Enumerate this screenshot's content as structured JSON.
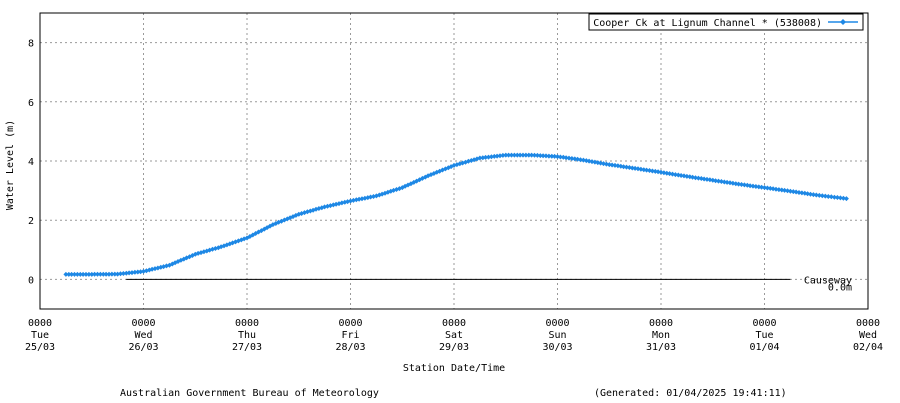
{
  "chart_data": {
    "type": "line",
    "title": "",
    "xlabel": "Station Date/Time",
    "ylabel": "Water Level (m)",
    "ylim": [
      -1,
      9
    ],
    "yticks": [
      0,
      2,
      4,
      6,
      8
    ],
    "grid": true,
    "legend_position": "top-right",
    "x_ticks": [
      {
        "time": "0000",
        "day": "Tue",
        "date": "25/03"
      },
      {
        "time": "0000",
        "day": "Wed",
        "date": "26/03"
      },
      {
        "time": "0000",
        "day": "Thu",
        "date": "27/03"
      },
      {
        "time": "0000",
        "day": "Fri",
        "date": "28/03"
      },
      {
        "time": "0000",
        "day": "Sat",
        "date": "29/03"
      },
      {
        "time": "0000",
        "day": "Sun",
        "date": "30/03"
      },
      {
        "time": "0000",
        "day": "Mon",
        "date": "31/03"
      },
      {
        "time": "0000",
        "day": "Tue",
        "date": "01/04"
      },
      {
        "time": "0000",
        "day": "Wed",
        "date": "02/04"
      }
    ],
    "series": [
      {
        "name": "Cooper Ck at Lignum Channel * (538008)",
        "color": "#1e88e5",
        "marker": "diamond",
        "points": [
          [
            "2025-03-25 06:00",
            0.17
          ],
          [
            "2025-03-25 12:00",
            0.17
          ],
          [
            "2025-03-25 18:00",
            0.18
          ],
          [
            "2025-03-26 00:00",
            0.27
          ],
          [
            "2025-03-26 06:00",
            0.48
          ],
          [
            "2025-03-26 12:00",
            0.85
          ],
          [
            "2025-03-26 18:00",
            1.1
          ],
          [
            "2025-03-27 00:00",
            1.4
          ],
          [
            "2025-03-27 06:00",
            1.85
          ],
          [
            "2025-03-27 12:00",
            2.2
          ],
          [
            "2025-03-27 18:00",
            2.45
          ],
          [
            "2025-03-28 00:00",
            2.65
          ],
          [
            "2025-03-28 06:00",
            2.82
          ],
          [
            "2025-03-28 12:00",
            3.1
          ],
          [
            "2025-03-28 18:00",
            3.5
          ],
          [
            "2025-03-29 00:00",
            3.85
          ],
          [
            "2025-03-29 06:00",
            4.1
          ],
          [
            "2025-03-29 12:00",
            4.2
          ],
          [
            "2025-03-29 18:00",
            4.2
          ],
          [
            "2025-03-30 00:00",
            4.15
          ],
          [
            "2025-03-30 06:00",
            4.03
          ],
          [
            "2025-03-30 12:00",
            3.88
          ],
          [
            "2025-03-30 18:00",
            3.75
          ],
          [
            "2025-03-31 00:00",
            3.62
          ],
          [
            "2025-03-31 06:00",
            3.48
          ],
          [
            "2025-03-31 12:00",
            3.35
          ],
          [
            "2025-03-31 18:00",
            3.22
          ],
          [
            "2025-04-01 00:00",
            3.1
          ],
          [
            "2025-04-01 06:00",
            2.98
          ],
          [
            "2025-04-01 12:00",
            2.85
          ],
          [
            "2025-04-01 19:00",
            2.73
          ]
        ]
      }
    ],
    "reference_lines": [
      {
        "label": "Causeway",
        "value_label": "0.0m",
        "y": 0.0,
        "x_start": "2025-03-25 20:00",
        "x_end": "2025-04-01 06:00"
      }
    ]
  },
  "footer": {
    "source": "Australian Government Bureau of Meteorology",
    "generated": "(Generated: 01/04/2025 19:41:11)"
  }
}
